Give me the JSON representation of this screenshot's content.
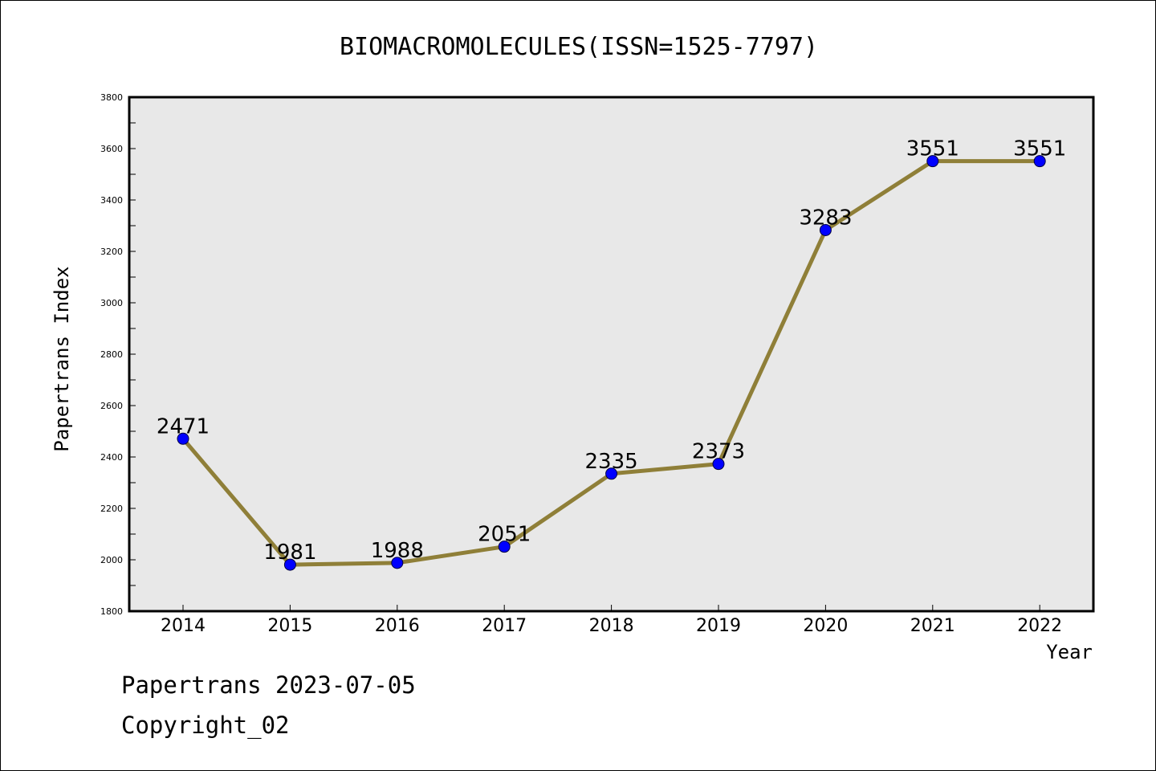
{
  "footer": {
    "date_line": "Papertrans 2023-07-05",
    "copyright_line": "Copyright_02"
  },
  "colors": {
    "plot_background": "#e8e8e8",
    "line": "#8f7f38",
    "marker": "#0000ff"
  },
  "chart_data": {
    "type": "line",
    "title": "BIOMACROMOLECULES(ISSN=1525-7797)",
    "xlabel": "Year",
    "ylabel": "Papertrans Index",
    "categories": [
      "2014",
      "2015",
      "2016",
      "2017",
      "2018",
      "2019",
      "2020",
      "2021",
      "2022"
    ],
    "values": [
      2471,
      1981,
      1988,
      2051,
      2335,
      2373,
      3283,
      3551,
      3551
    ],
    "data_labels": [
      "2471",
      "1981",
      "1988",
      "2051",
      "2335",
      "2373",
      "3283",
      "3551",
      "3551"
    ],
    "ylim": [
      1800,
      3800
    ],
    "yticks": [
      1800,
      2000,
      2200,
      2400,
      2600,
      2800,
      3000,
      3200,
      3400,
      3600,
      3800
    ],
    "ytick_labels": [
      "1800",
      "2000",
      "2200",
      "2400",
      "2600",
      "2800",
      "3000",
      "3200",
      "3400",
      "3600",
      "3800"
    ],
    "grid": false,
    "legend": "none"
  }
}
